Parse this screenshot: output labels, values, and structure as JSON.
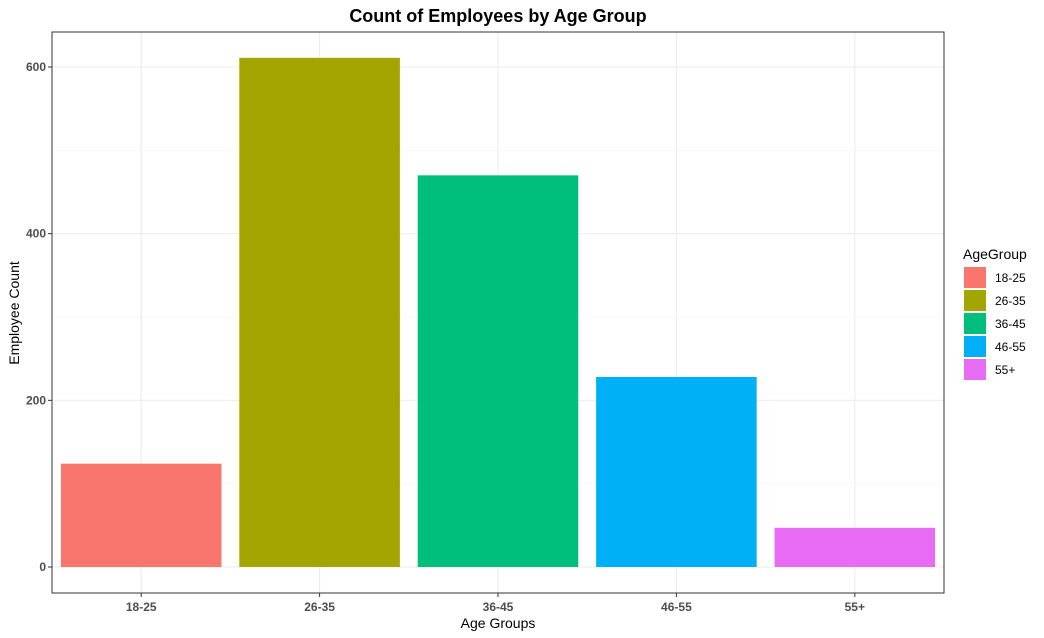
{
  "chart_data": {
    "type": "bar",
    "title": "Count of Employees by Age Group",
    "xlabel": "Age Groups",
    "ylabel": "Employee Count",
    "categories": [
      "18-25",
      "26-35",
      "36-45",
      "46-55",
      "55+"
    ],
    "values": [
      124,
      611,
      470,
      228,
      47
    ],
    "colors": [
      "#F8766D",
      "#A3A500",
      "#00BF7D",
      "#00B0F6",
      "#E76BF3"
    ],
    "ylim": [
      0,
      611
    ],
    "yticks": [
      0,
      200,
      400,
      600
    ],
    "grid": true,
    "legend": {
      "title": "AgeGroup",
      "placement": "right",
      "entries": [
        "18-25",
        "26-35",
        "36-45",
        "46-55",
        "55+"
      ]
    }
  }
}
